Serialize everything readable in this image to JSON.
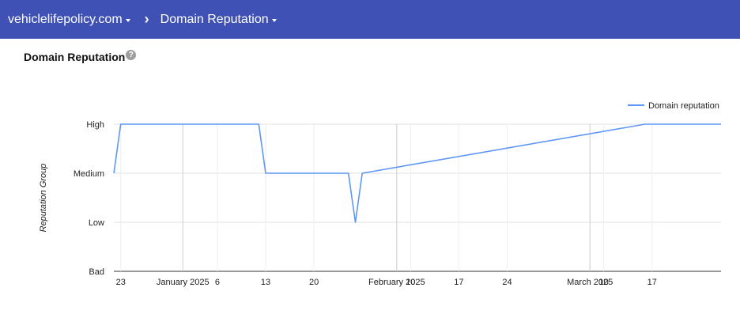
{
  "header": {
    "domain_label": "vehiclelifepolicy.com",
    "separator": "›",
    "section_label": "Domain Reputation"
  },
  "page": {
    "title": "Domain Reputation",
    "help_glyph": "?"
  },
  "colors": {
    "header_bg": "#3f51b5",
    "series": "#5e97f6"
  },
  "chart_data": {
    "type": "line",
    "ylabel": "Reputation Group",
    "y_categories": [
      "Bad",
      "Low",
      "Medium",
      "High"
    ],
    "x_ticks": [
      {
        "day": 1,
        "label": "23"
      },
      {
        "day": 10,
        "label": "January 2025"
      },
      {
        "day": 15,
        "label": "6"
      },
      {
        "day": 22,
        "label": "13"
      },
      {
        "day": 29,
        "label": "20"
      },
      {
        "day": 41,
        "label": "February 2025"
      },
      {
        "day": 43,
        "label": "10"
      },
      {
        "day": 50,
        "label": "17"
      },
      {
        "day": 57,
        "label": "24"
      },
      {
        "day": 69,
        "label": "March 2025"
      },
      {
        "day": 71,
        "label": "10"
      },
      {
        "day": 78,
        "label": "17"
      }
    ],
    "x_range": [
      "2024-12-21",
      "2025-03-19"
    ],
    "series": [
      {
        "name": "Domain reputation",
        "points": [
          {
            "date": "2024-12-21",
            "value": "Medium"
          },
          {
            "date": "2024-12-22",
            "value": "High"
          },
          {
            "date": "2025-01-11",
            "value": "High"
          },
          {
            "date": "2025-01-12",
            "value": "Medium"
          },
          {
            "date": "2025-01-24",
            "value": "Medium"
          },
          {
            "date": "2025-01-25",
            "value": "Low"
          },
          {
            "date": "2025-01-26",
            "value": "Medium"
          },
          {
            "date": "2025-03-08",
            "value": "High"
          },
          {
            "date": "2025-03-19",
            "value": "High"
          }
        ]
      }
    ],
    "legend_position": "top-right",
    "grid": true
  }
}
